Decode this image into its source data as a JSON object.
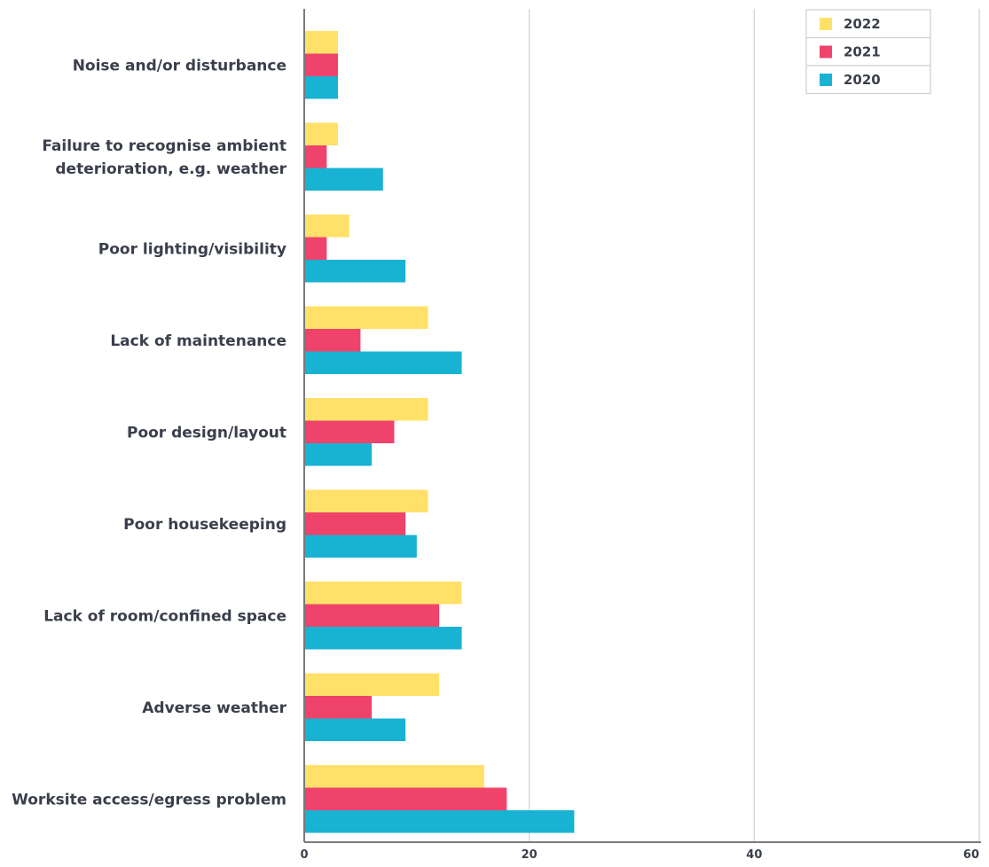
{
  "chart_data": {
    "type": "bar",
    "orientation": "horizontal",
    "title": "",
    "xlabel": "",
    "ylabel": "",
    "xlim": [
      0,
      60
    ],
    "x_ticks": [
      "0",
      "20",
      "40",
      "60"
    ],
    "grid": true,
    "legend_position": "top-right",
    "categories": [
      [
        "Noise and/or disturbance"
      ],
      [
        "Failure to recognise ambient",
        "deterioration, e.g. weather"
      ],
      [
        "Poor lighting/visibility"
      ],
      [
        "Lack of maintenance"
      ],
      [
        "Poor design/layout"
      ],
      [
        "Poor housekeeping"
      ],
      [
        "Lack of room/confined space"
      ],
      [
        "Adverse weather"
      ],
      [
        "Worksite access/egress problem"
      ]
    ],
    "series": [
      {
        "name": "2022",
        "color": "#FFE169",
        "values": [
          3,
          3,
          4,
          11,
          11,
          11,
          14,
          12,
          16
        ]
      },
      {
        "name": "2021",
        "color": "#EF436B",
        "values": [
          3,
          2,
          2,
          5,
          8,
          9,
          12,
          6,
          18
        ]
      },
      {
        "name": "2020",
        "color": "#18B2D3",
        "values": [
          3,
          7,
          9,
          14,
          6,
          10,
          14,
          9,
          24
        ]
      }
    ]
  }
}
